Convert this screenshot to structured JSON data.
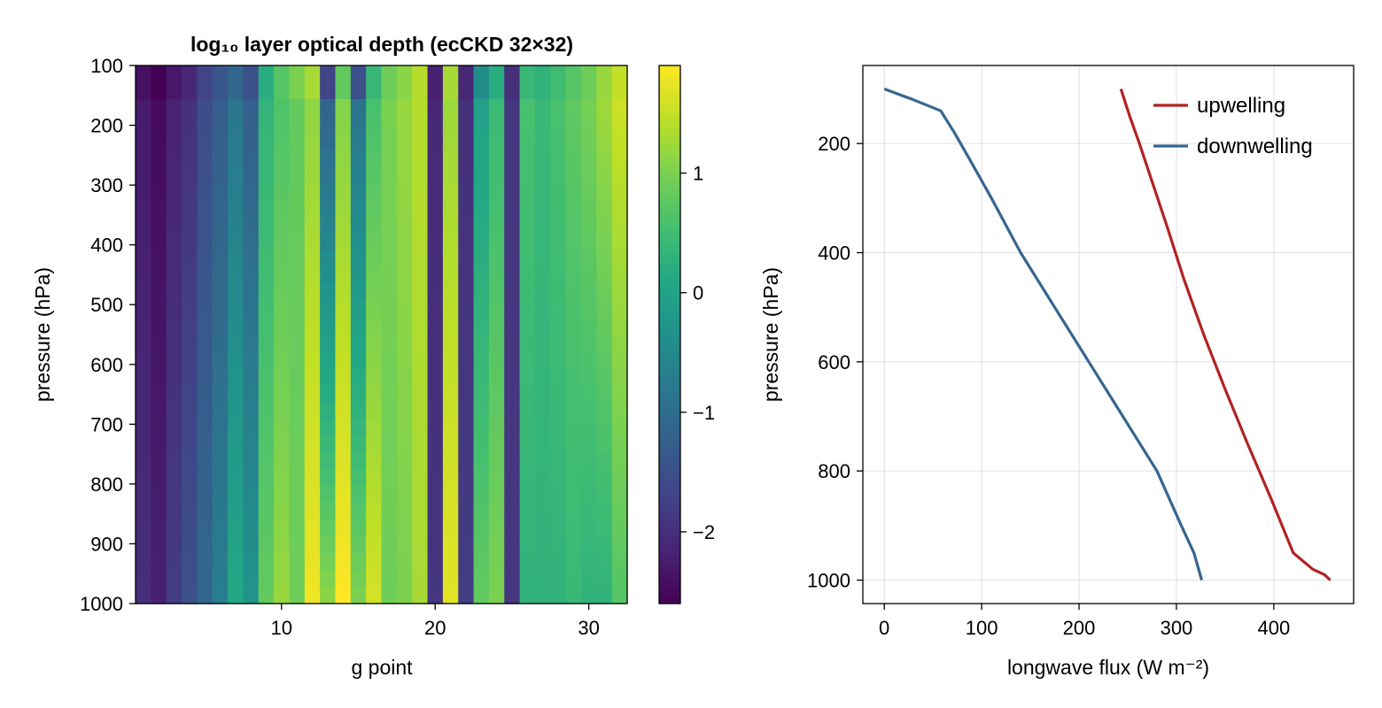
{
  "chart_data": [
    {
      "type": "heatmap",
      "title": "log₁₀ layer optical depth (ecCKD 32×32)",
      "xlabel": "g point",
      "ylabel": "pressure (hPa)",
      "xlim": [
        0.5,
        32.5
      ],
      "ylim": [
        1000,
        100
      ],
      "x_ticks": [
        10,
        20,
        30
      ],
      "y_ticks": [
        100,
        200,
        300,
        400,
        500,
        600,
        700,
        800,
        900,
        1000
      ],
      "n_gpoints": 32,
      "n_layers": 32,
      "colormap": "viridis",
      "colorbar": {
        "range": [
          -2.6,
          1.9
        ],
        "ticks": [
          -2,
          -1,
          0,
          1
        ]
      },
      "column_values_top": [
        -2.3,
        -2.5,
        -2.2,
        -2.0,
        -1.6,
        -1.3,
        -0.9,
        -1.3,
        0.3,
        0.6,
        0.8,
        1.1,
        -1.3,
        1.0,
        -1.0,
        0.5,
        1.0,
        1.2,
        1.4,
        -2.1,
        1.2,
        -2.0,
        -0.1,
        0.4,
        -1.9,
        0.6,
        0.4,
        0.6,
        0.8,
        1.0,
        1.3,
        1.6
      ],
      "column_values_bottom": [
        -2.0,
        -2.2,
        -1.8,
        -1.5,
        -1.1,
        -0.7,
        0.1,
        -0.3,
        0.8,
        1.2,
        0.9,
        1.8,
        1.1,
        1.9,
        1.0,
        1.6,
        0.9,
        1.0,
        1.3,
        -1.9,
        1.7,
        -1.8,
        0.8,
        1.0,
        -1.9,
        0.3,
        0.3,
        0.3,
        0.4,
        0.3,
        0.3,
        0.7
      ],
      "upper_stripe_values": [
        -2.4,
        -2.6,
        -2.3,
        -2.1,
        -1.7,
        -1.4,
        -1.1,
        -1.5,
        0.2,
        0.7,
        1.0,
        1.3,
        -1.7,
        0.8,
        -1.5,
        0.4,
        0.9,
        1.1,
        1.4,
        -2.2,
        1.3,
        -2.1,
        -0.4,
        0.2,
        -2.0,
        0.4,
        0.3,
        0.5,
        0.7,
        0.9,
        1.2,
        1.5
      ]
    },
    {
      "type": "line",
      "xlabel": "longwave flux (W m⁻²)",
      "ylabel": "pressure (hPa)",
      "xlim": [
        -22,
        482
      ],
      "ylim": [
        1043,
        57
      ],
      "x_ticks": [
        0,
        100,
        200,
        300,
        400
      ],
      "y_ticks": [
        200,
        400,
        600,
        800,
        1000
      ],
      "grid": true,
      "legend_position": "top-right",
      "series": [
        {
          "name": "upwelling",
          "color": "#b22222",
          "x": [
            243,
            252,
            262,
            275,
            290,
            308,
            328,
            350,
            373,
            397,
            420,
            440,
            452,
            458
          ],
          "y": [
            100,
            150,
            200,
            270,
            350,
            450,
            550,
            650,
            750,
            850,
            950,
            980,
            990,
            1000
          ]
        },
        {
          "name": "downwelling",
          "color": "#366690",
          "x": [
            0,
            30,
            58,
            72,
            88,
            110,
            140,
            175,
            210,
            245,
            280,
            305,
            318,
            326
          ],
          "y": [
            100,
            120,
            140,
            180,
            230,
            300,
            400,
            500,
            600,
            700,
            800,
            900,
            950,
            1000
          ]
        }
      ]
    }
  ]
}
